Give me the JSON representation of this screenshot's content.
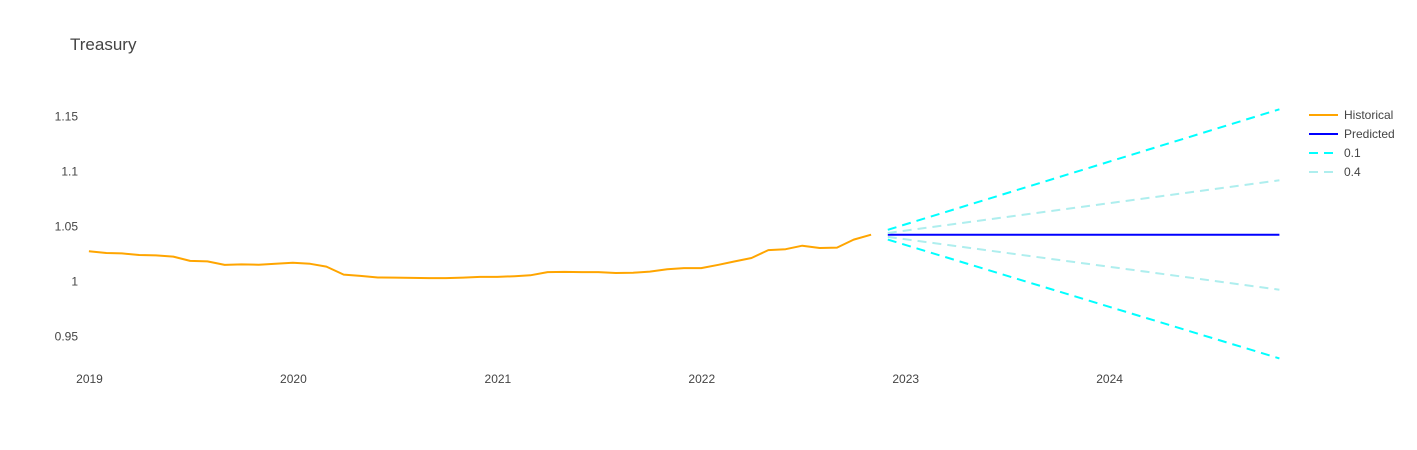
{
  "chart_data": {
    "type": "line",
    "title": "Treasury",
    "xlabel": "",
    "ylabel": "",
    "x_ticks": [
      "2019",
      "2020",
      "2021",
      "2022",
      "2023",
      "2024"
    ],
    "y_ticks": [
      "0.95",
      "1",
      "1.05",
      "1.1",
      "1.15"
    ],
    "ylim": [
      0.924,
      1.165
    ],
    "xlim": [
      "2018-12-15",
      "2024-11-01"
    ],
    "grid": false,
    "legend_position": "top-right",
    "series": [
      {
        "name": "Historical",
        "color": "#FFA500",
        "dash": "solid",
        "points": [
          [
            "2018-12-31",
            1.0275
          ],
          [
            "2019-01-31",
            1.0259
          ],
          [
            "2019-02-28",
            1.0255
          ],
          [
            "2019-03-31",
            1.024
          ],
          [
            "2019-04-30",
            1.0237
          ],
          [
            "2019-05-31",
            1.0226
          ],
          [
            "2019-06-30",
            1.0187
          ],
          [
            "2019-07-31",
            1.0182
          ],
          [
            "2019-08-31",
            1.015
          ],
          [
            "2019-09-30",
            1.0155
          ],
          [
            "2019-10-31",
            1.0152
          ],
          [
            "2019-11-30",
            1.016
          ],
          [
            "2019-12-31",
            1.017
          ],
          [
            "2020-01-31",
            1.016
          ],
          [
            "2020-02-29",
            1.0135
          ],
          [
            "2020-03-31",
            1.0062
          ],
          [
            "2020-04-30",
            1.005
          ],
          [
            "2020-05-31",
            1.0036
          ],
          [
            "2020-06-30",
            1.0035
          ],
          [
            "2020-07-31",
            1.0032
          ],
          [
            "2020-08-31",
            1.003
          ],
          [
            "2020-09-30",
            1.003
          ],
          [
            "2020-10-31",
            1.0035
          ],
          [
            "2020-11-30",
            1.0041
          ],
          [
            "2020-12-31",
            1.0041
          ],
          [
            "2021-01-31",
            1.0048
          ],
          [
            "2021-02-28",
            1.0056
          ],
          [
            "2021-03-31",
            1.0085
          ],
          [
            "2021-04-30",
            1.0087
          ],
          [
            "2021-05-31",
            1.0085
          ],
          [
            "2021-06-30",
            1.0085
          ],
          [
            "2021-07-31",
            1.0077
          ],
          [
            "2021-08-31",
            1.0079
          ],
          [
            "2021-09-30",
            1.0089
          ],
          [
            "2021-10-31",
            1.0111
          ],
          [
            "2021-11-30",
            1.0121
          ],
          [
            "2021-12-31",
            1.0121
          ],
          [
            "2022-01-31",
            1.0151
          ],
          [
            "2022-02-28",
            1.0181
          ],
          [
            "2022-03-31",
            1.0213
          ],
          [
            "2022-04-30",
            1.0285
          ],
          [
            "2022-05-31",
            1.0293
          ],
          [
            "2022-06-30",
            1.0325
          ],
          [
            "2022-07-31",
            1.0304
          ],
          [
            "2022-08-31",
            1.0308
          ],
          [
            "2022-09-30",
            1.038
          ],
          [
            "2022-10-31",
            1.0425
          ]
        ]
      },
      {
        "name": "Predicted",
        "color": "#0000FF",
        "dash": "solid",
        "points": [
          [
            "2022-11-30",
            1.0425
          ],
          [
            "2024-10-31",
            1.0425
          ]
        ]
      },
      {
        "name": "0.1",
        "color": "#00FFFF",
        "dash": "dash",
        "points": [
          [
            "2022-11-30",
            1.047
          ],
          [
            "2024-10-31",
            1.1565
          ]
        ]
      },
      {
        "name": "0.1",
        "color": "#00FFFF",
        "dash": "dash",
        "show_in_legend": false,
        "points": [
          [
            "2022-11-30",
            1.038
          ],
          [
            "2024-10-31",
            0.93
          ]
        ]
      },
      {
        "name": "0.4",
        "color": "#AEEEEE",
        "dash": "dash",
        "points": [
          [
            "2022-11-30",
            1.044
          ],
          [
            "2024-10-31",
            1.092
          ]
        ]
      },
      {
        "name": "0.4",
        "color": "#AEEEEE",
        "dash": "dash",
        "show_in_legend": false,
        "points": [
          [
            "2022-11-30",
            1.0405
          ],
          [
            "2024-10-31",
            0.9925
          ]
        ]
      }
    ]
  }
}
